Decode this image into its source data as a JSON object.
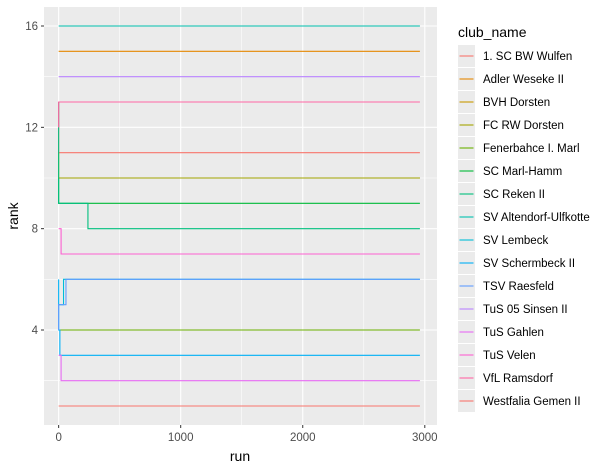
{
  "chart_data": {
    "type": "line",
    "title": "",
    "xlabel": "run",
    "ylabel": "rank",
    "xlim": [
      -120,
      3100
    ],
    "ylim": [
      0.25,
      16.75
    ],
    "x_ticks": [
      0,
      1000,
      2000,
      3000
    ],
    "x_tick_labels": [
      "0",
      "1000",
      "2000",
      "3000"
    ],
    "y_ticks": [
      4,
      8,
      12,
      16
    ],
    "y_tick_labels": [
      "4",
      "8",
      "12",
      "16"
    ],
    "grid": true,
    "legend_title": "club_name",
    "legend_position": "right",
    "series": [
      {
        "name": "1. SC BW Wulfen",
        "color": "#F8766D",
        "points": [
          [
            0,
            13
          ],
          [
            0,
            11
          ],
          [
            2960,
            11
          ]
        ]
      },
      {
        "name": "Adler Weseke II",
        "color": "#E58700",
        "points": [
          [
            0,
            15
          ],
          [
            2960,
            15
          ]
        ]
      },
      {
        "name": "BVH Dorsten",
        "color": "#C99800",
        "points": [
          [
            0,
            10
          ],
          [
            2960,
            10
          ]
        ]
      },
      {
        "name": "FC RW Dorsten",
        "color": "#A3A500",
        "points": [
          [
            0,
            11
          ],
          [
            0,
            10
          ],
          [
            2960,
            10
          ]
        ]
      },
      {
        "name": "Fenerbahce I. Marl",
        "color": "#6BB100",
        "points": [
          [
            0,
            4
          ],
          [
            2960,
            4
          ]
        ]
      },
      {
        "name": "SC Marl-Hamm",
        "color": "#00BA38",
        "points": [
          [
            0,
            10
          ],
          [
            0,
            9
          ],
          [
            2960,
            9
          ]
        ]
      },
      {
        "name": "SC Reken II",
        "color": "#00BF7D",
        "points": [
          [
            0,
            13
          ],
          [
            0,
            9
          ],
          [
            240,
            9
          ],
          [
            240,
            8
          ],
          [
            2960,
            8
          ]
        ]
      },
      {
        "name": "SV Altendorf-Ulfkotte",
        "color": "#00C0AF",
        "points": [
          [
            0,
            16
          ],
          [
            2960,
            16
          ]
        ]
      },
      {
        "name": "SV Lembeck",
        "color": "#00BCD8",
        "points": [
          [
            0,
            5
          ],
          [
            40,
            5
          ],
          [
            40,
            6
          ],
          [
            2960,
            6
          ]
        ]
      },
      {
        "name": "SV Schermbeck II",
        "color": "#00B0F6",
        "points": [
          [
            0,
            6
          ],
          [
            0,
            4
          ],
          [
            10,
            4
          ],
          [
            10,
            3
          ],
          [
            2960,
            3
          ]
        ]
      },
      {
        "name": "TSV Raesfeld",
        "color": "#619CFF",
        "points": [
          [
            0,
            4
          ],
          [
            0,
            5
          ],
          [
            60,
            5
          ],
          [
            60,
            6
          ],
          [
            2960,
            6
          ]
        ]
      },
      {
        "name": "TuS 05 Sinsen II",
        "color": "#B983FF",
        "points": [
          [
            0,
            14
          ],
          [
            2960,
            14
          ]
        ]
      },
      {
        "name": "TuS Gahlen",
        "color": "#E76BF3",
        "points": [
          [
            0,
            3
          ],
          [
            20,
            3
          ],
          [
            20,
            2
          ],
          [
            2960,
            2
          ]
        ]
      },
      {
        "name": "TuS Velen",
        "color": "#FD61D1",
        "points": [
          [
            0,
            8
          ],
          [
            20,
            8
          ],
          [
            20,
            7
          ],
          [
            2960,
            7
          ]
        ]
      },
      {
        "name": "VfL Ramsdorf",
        "color": "#FF67A4",
        "points": [
          [
            0,
            12
          ],
          [
            0,
            13
          ],
          [
            2960,
            13
          ]
        ]
      },
      {
        "name": "Westfalia Gemen II",
        "color": "#F8766D",
        "points": [
          [
            0,
            1
          ],
          [
            2960,
            1
          ]
        ]
      }
    ]
  }
}
